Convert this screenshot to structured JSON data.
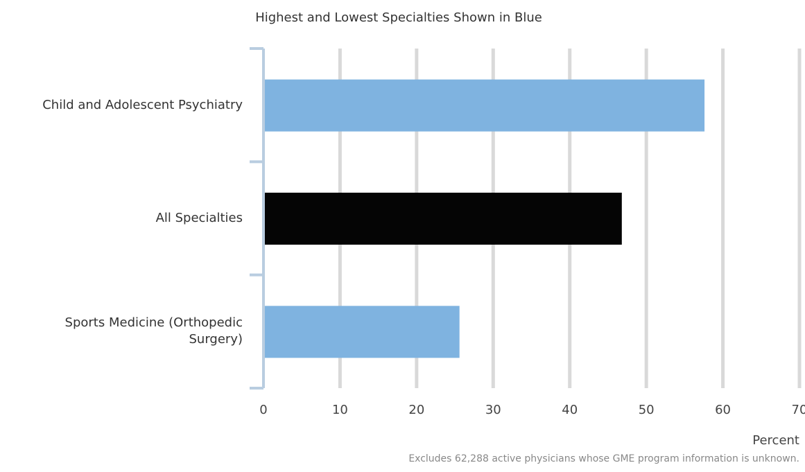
{
  "chart_data": {
    "type": "bar",
    "orientation": "horizontal",
    "title": "Highest and Lowest Specialties Shown in Blue",
    "categories": [
      "Child and Adolescent Psychiatry",
      "All Specialties",
      "Sports Medicine (Orthopedic Surgery)"
    ],
    "values": [
      57.6,
      46.8,
      25.6
    ],
    "colors": [
      "#7fb3e0",
      "#050505",
      "#7fb3e0"
    ],
    "xlim": [
      0,
      70
    ],
    "xticks": [
      0,
      10,
      20,
      30,
      40,
      50,
      60,
      70
    ],
    "xlabel": "Percent",
    "note": "Excludes 62,288 active physicians whose GME program information is unknown.",
    "grid": true
  }
}
